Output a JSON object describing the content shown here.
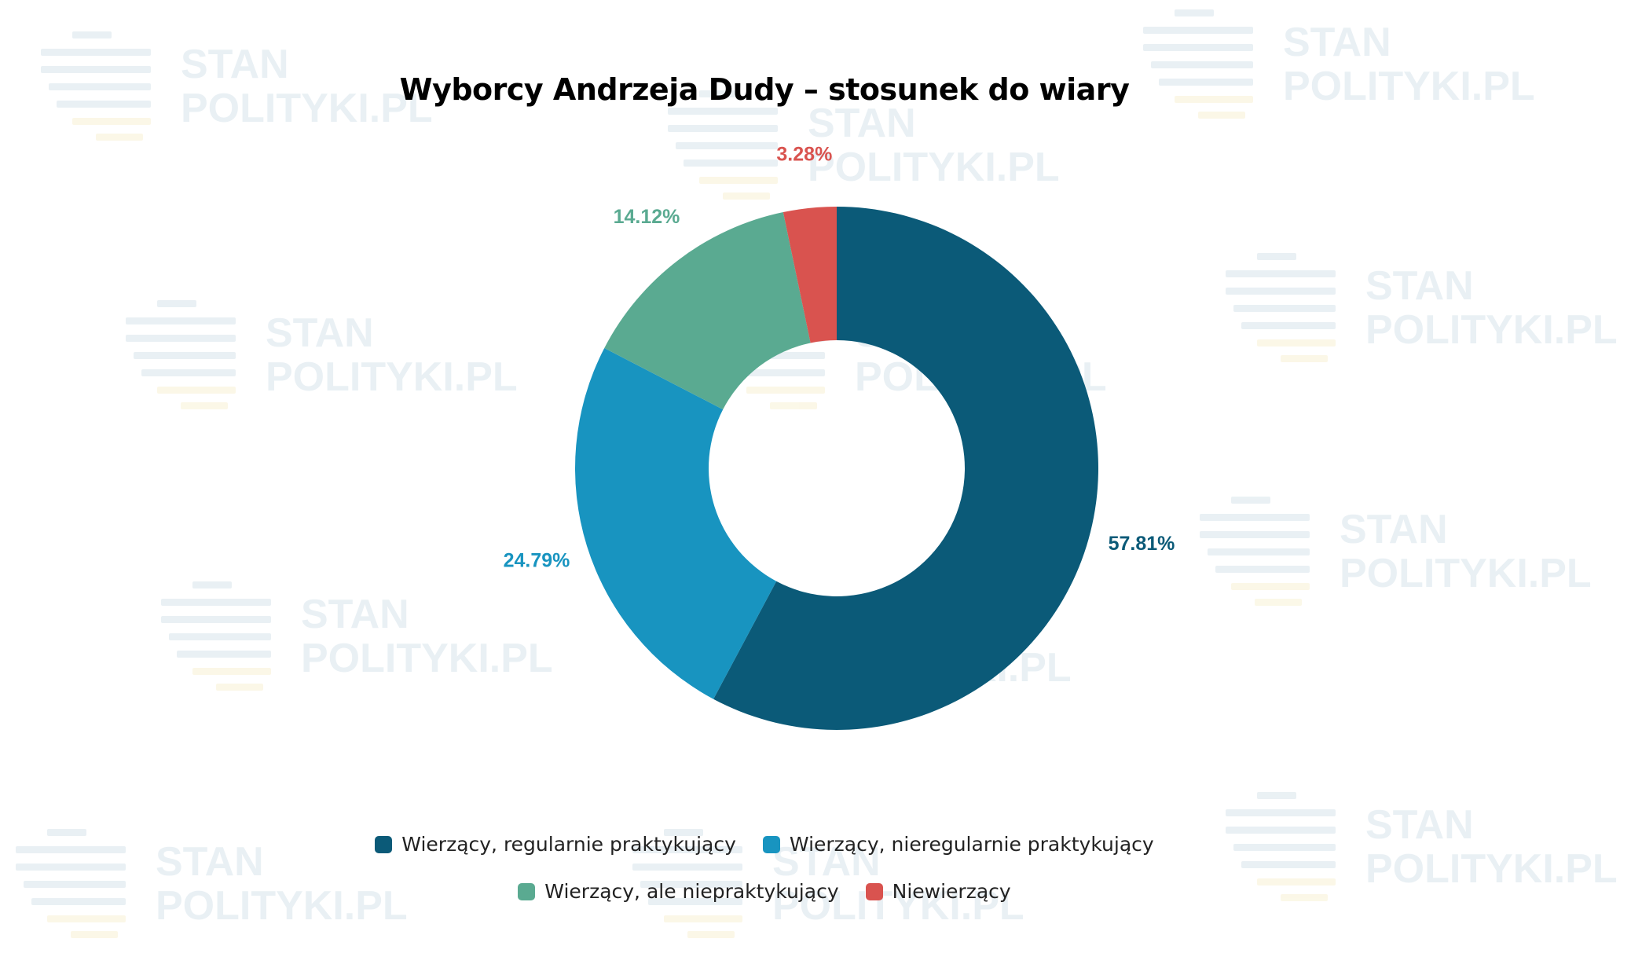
{
  "title": "Wyborcy Andrzeja Dudy – stosunek do wiary",
  "watermark": {
    "line1": "STAN",
    "line2": "POLITYKI.PL"
  },
  "chart_data": {
    "type": "pie",
    "variant": "donut",
    "title": "Wyborcy Andrzeja Dudy – stosunek do wiary",
    "legend_position": "bottom",
    "slices": [
      {
        "name": "Wierzący, regularnie praktykujący",
        "value": 57.81,
        "label": "57.81%",
        "color": "#0b5a78"
      },
      {
        "name": "Wierzący, nieregularnie praktykujący",
        "value": 24.79,
        "label": "24.79%",
        "color": "#1894c0"
      },
      {
        "name": "Wierzący, ale niepraktykujący",
        "value": 14.12,
        "label": "14.12%",
        "color": "#5aaa91"
      },
      {
        "name": "Niewierzący",
        "value": 3.28,
        "label": "3.28%",
        "color": "#d9534f"
      }
    ]
  }
}
